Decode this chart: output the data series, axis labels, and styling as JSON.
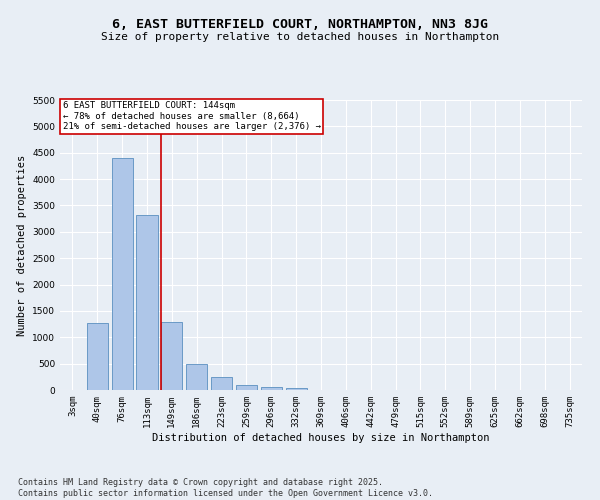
{
  "title": "6, EAST BUTTERFIELD COURT, NORTHAMPTON, NN3 8JG",
  "subtitle": "Size of property relative to detached houses in Northampton",
  "xlabel": "Distribution of detached houses by size in Northampton",
  "ylabel": "Number of detached properties",
  "categories": [
    "3sqm",
    "40sqm",
    "76sqm",
    "113sqm",
    "149sqm",
    "186sqm",
    "223sqm",
    "259sqm",
    "296sqm",
    "332sqm",
    "369sqm",
    "406sqm",
    "442sqm",
    "479sqm",
    "515sqm",
    "552sqm",
    "589sqm",
    "625sqm",
    "662sqm",
    "698sqm",
    "735sqm"
  ],
  "bar_values": [
    0,
    1270,
    4400,
    3320,
    1290,
    500,
    240,
    90,
    60,
    40,
    0,
    0,
    0,
    0,
    0,
    0,
    0,
    0,
    0,
    0,
    0
  ],
  "bar_color": "#aec6e8",
  "bar_edge_color": "#5a8fc0",
  "annotation_text": "6 EAST BUTTERFIELD COURT: 144sqm\n← 78% of detached houses are smaller (8,664)\n21% of semi-detached houses are larger (2,376) →",
  "annotation_box_color": "#ffffff",
  "annotation_border_color": "#cc0000",
  "vline_color": "#cc0000",
  "ylim": [
    0,
    5500
  ],
  "yticks": [
    0,
    500,
    1000,
    1500,
    2000,
    2500,
    3000,
    3500,
    4000,
    4500,
    5000,
    5500
  ],
  "background_color": "#e8eef5",
  "footer_text": "Contains HM Land Registry data © Crown copyright and database right 2025.\nContains public sector information licensed under the Open Government Licence v3.0.",
  "title_fontsize": 9.5,
  "subtitle_fontsize": 8,
  "axis_label_fontsize": 7.5,
  "tick_fontsize": 6.5,
  "footer_fontsize": 6,
  "annotation_fontsize": 6.5
}
